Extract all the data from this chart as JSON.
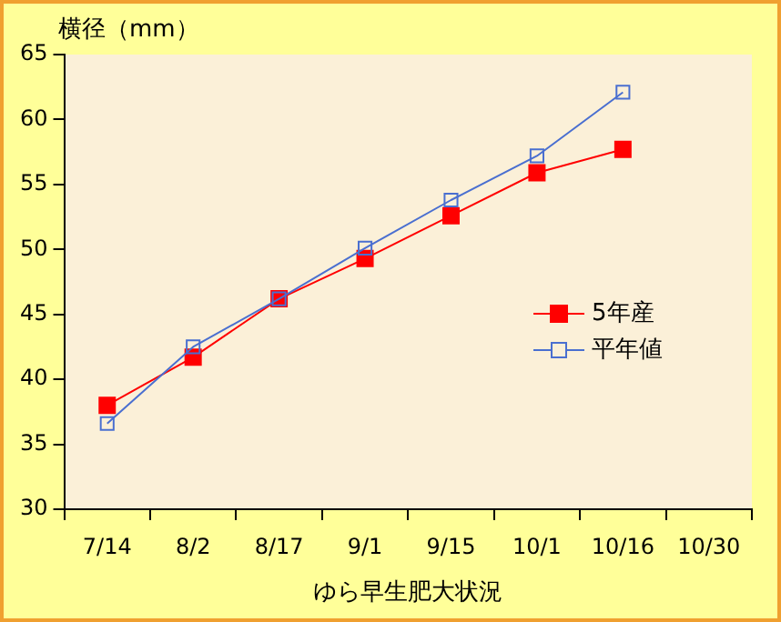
{
  "chart_data": {
    "type": "line",
    "xlabel": "ゆら早生肥大状況",
    "ylabel": "横径（mm）",
    "categories": [
      "7/14",
      "8/2",
      "8/17",
      "9/1",
      "9/15",
      "10/1",
      "10/16",
      "10/30"
    ],
    "series": [
      {
        "name": "5年産",
        "color": "#ff0000",
        "values": [
          38.0,
          41.7,
          46.2,
          49.3,
          52.6,
          55.9,
          57.7,
          null
        ]
      },
      {
        "name": "平年値",
        "color": "#4a6fd0",
        "values": [
          36.6,
          42.5,
          46.2,
          50.1,
          53.8,
          57.2,
          62.1,
          null
        ]
      }
    ],
    "ylim": [
      30,
      65
    ],
    "yticks": [
      30,
      35,
      40,
      45,
      50,
      55,
      60,
      65
    ],
    "grid": false,
    "legend": "right",
    "marker": "square",
    "line_style": "solid"
  }
}
